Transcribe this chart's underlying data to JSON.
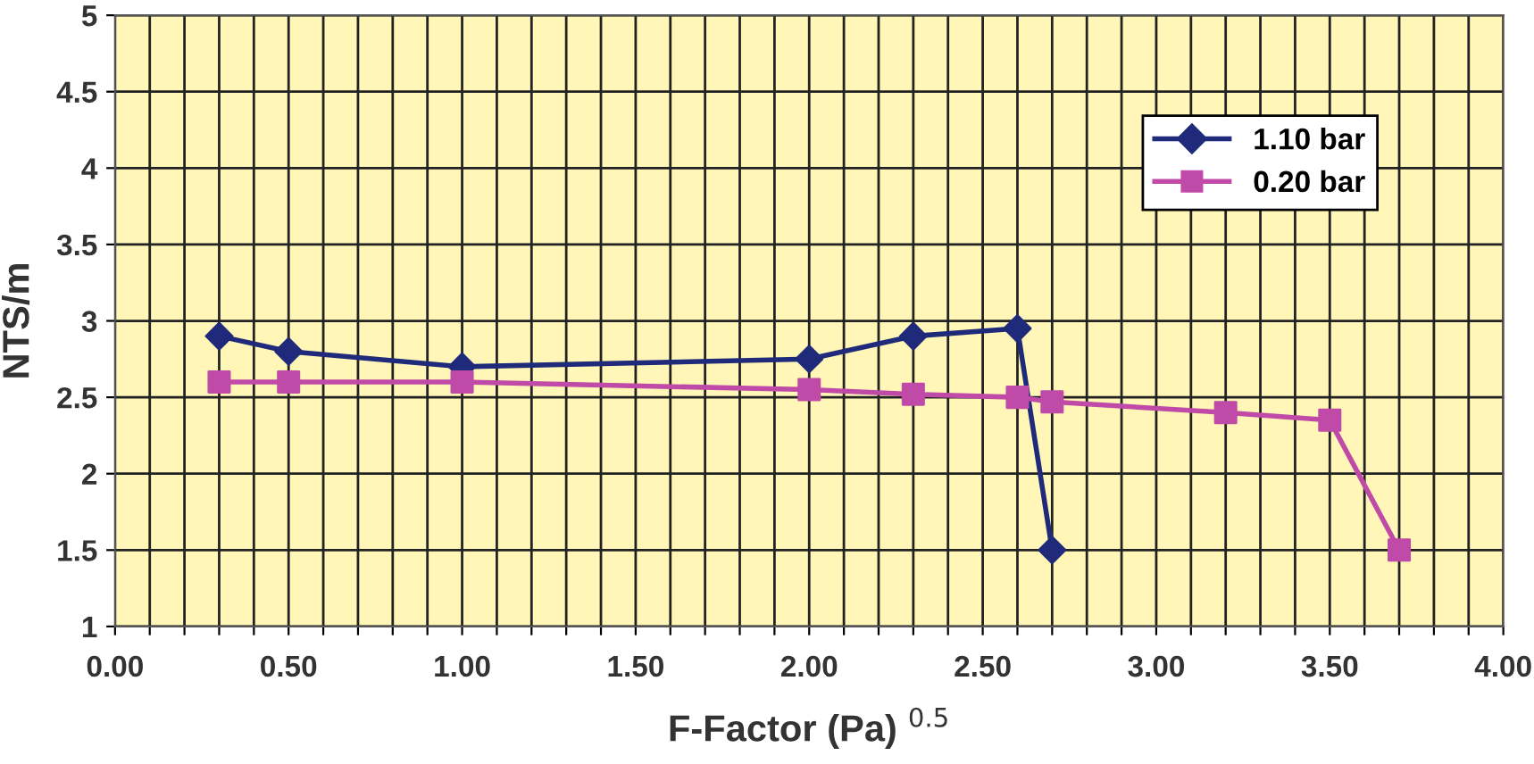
{
  "chart_data": {
    "type": "line",
    "xlabel": "F-Factor (Pa) $^{0.5}$",
    "ylabel": "NTS/m",
    "xlim": [
      0,
      4
    ],
    "ylim": [
      1,
      5
    ],
    "xticks": [
      {
        "value": 0,
        "label": "0.00"
      },
      {
        "value": 0.1,
        "label": null
      },
      {
        "value": 0.2,
        "label": null
      },
      {
        "value": 0.3,
        "label": null
      },
      {
        "value": 0.4,
        "label": null
      },
      {
        "value": 0.5,
        "label": "0.50"
      },
      {
        "value": 0.6,
        "label": null
      },
      {
        "value": 0.7,
        "label": null
      },
      {
        "value": 0.8,
        "label": null
      },
      {
        "value": 0.9,
        "label": null
      },
      {
        "value": 1,
        "label": "1.00"
      },
      {
        "value": 1.1,
        "label": null
      },
      {
        "value": 1.2,
        "label": null
      },
      {
        "value": 1.3,
        "label": null
      },
      {
        "value": 1.4,
        "label": null
      },
      {
        "value": 1.5,
        "label": "1.50"
      },
      {
        "value": 1.6,
        "label": null
      },
      {
        "value": 1.7,
        "label": null
      },
      {
        "value": 1.8,
        "label": null
      },
      {
        "value": 1.9,
        "label": null
      },
      {
        "value": 2,
        "label": "2.00"
      },
      {
        "value": 2.1,
        "label": null
      },
      {
        "value": 2.2,
        "label": null
      },
      {
        "value": 2.3,
        "label": null
      },
      {
        "value": 2.4,
        "label": null
      },
      {
        "value": 2.5,
        "label": "2.50"
      },
      {
        "value": 2.6,
        "label": null
      },
      {
        "value": 2.7,
        "label": null
      },
      {
        "value": 2.8,
        "label": null
      },
      {
        "value": 2.9,
        "label": null
      },
      {
        "value": 3,
        "label": "3.00"
      },
      {
        "value": 3.1,
        "label": null
      },
      {
        "value": 3.2,
        "label": null
      },
      {
        "value": 3.3,
        "label": null
      },
      {
        "value": 3.4,
        "label": null
      },
      {
        "value": 3.5,
        "label": "3.50"
      },
      {
        "value": 3.6,
        "label": null
      },
      {
        "value": 3.7,
        "label": null
      },
      {
        "value": 3.8,
        "label": null
      },
      {
        "value": 3.9,
        "label": null
      },
      {
        "value": 4,
        "label": "4.00"
      }
    ],
    "yticks": [
      1,
      1.5,
      2,
      2.5,
      3,
      3.5,
      4,
      4.5,
      5
    ],
    "grid": true,
    "legend": "top right",
    "series": [
      {
        "name": "1.10 bar",
        "color": "#1f2a7a",
        "marker": "diamond",
        "x": [
          0.3,
          0.5,
          1.0,
          2.0,
          2.3,
          2.6,
          2.7
        ],
        "values": [
          2.9,
          2.8,
          2.7,
          2.75,
          2.9,
          2.95,
          1.5
        ]
      },
      {
        "name": "0.20 bar",
        "color": "#c04aa8",
        "marker": "square",
        "x": [
          0.3,
          0.5,
          1.0,
          2.0,
          2.3,
          2.6,
          2.7,
          3.2,
          3.5,
          3.7
        ],
        "values": [
          2.6,
          2.6,
          2.6,
          2.55,
          2.52,
          2.5,
          2.47,
          2.4,
          2.35,
          1.5
        ]
      }
    ]
  }
}
